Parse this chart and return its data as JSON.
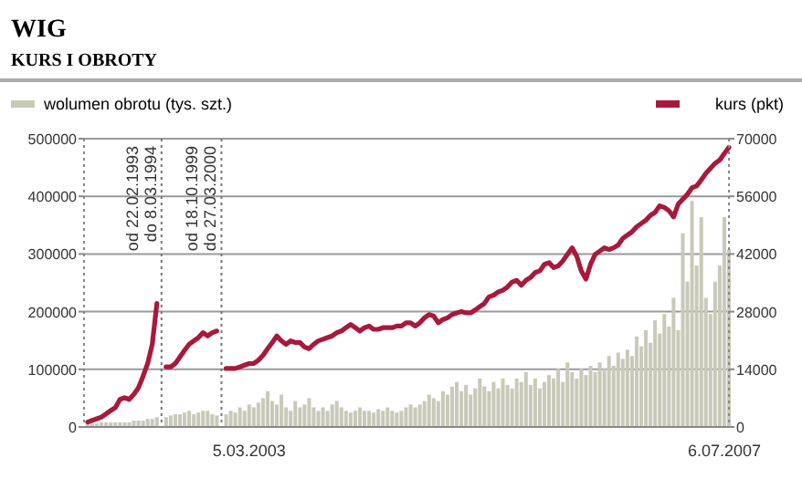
{
  "chart_data": {
    "type": "bar",
    "title": "WIG",
    "subtitle": "KURS I OBROTY",
    "categories": [
      null,
      null,
      null,
      null,
      null,
      null,
      null,
      null,
      null,
      null,
      null,
      null,
      null,
      null,
      null,
      null,
      null,
      null,
      null,
      null,
      null,
      null,
      null,
      null,
      null,
      null,
      null,
      null,
      null,
      null,
      null,
      null,
      null,
      null,
      null,
      "5.03.2003",
      null,
      null,
      null,
      null,
      null,
      null,
      null,
      null,
      null,
      null,
      null,
      null,
      null,
      null,
      null,
      null,
      null,
      null,
      null,
      null,
      null,
      null,
      null,
      null,
      null,
      null,
      null,
      null,
      null,
      null,
      null,
      null,
      null,
      null,
      null,
      null,
      null,
      null,
      null,
      null,
      null,
      null,
      null,
      null,
      null,
      null,
      null,
      null,
      null,
      null,
      null,
      null,
      null,
      null,
      null,
      null,
      null,
      null,
      null,
      null,
      null,
      null,
      null,
      null,
      null,
      null,
      null,
      null,
      null,
      null,
      null,
      null,
      null,
      null,
      null,
      null,
      null,
      null,
      null,
      null,
      null,
      null,
      null,
      null,
      null,
      null,
      null,
      null,
      null,
      null,
      null,
      null,
      null,
      null,
      null,
      null,
      null,
      null,
      null,
      null,
      null,
      null,
      "6.07.2007",
      null
    ],
    "series": [
      {
        "name": "wolumen obrotu (tys. szt.)",
        "axis": "y",
        "color": "#c9c9b9",
        "values": [
          6000,
          6000,
          6000,
          8000,
          8000,
          8000,
          8000,
          8000,
          8000,
          8000,
          11000,
          11000,
          11000,
          14000,
          14000,
          17000,
          null,
          17000,
          20000,
          22000,
          22000,
          25000,
          28000,
          22000,
          25000,
          28000,
          28000,
          22000,
          20000,
          null,
          22000,
          28000,
          25000,
          34000,
          28000,
          39000,
          34000,
          42000,
          50000,
          62000,
          45000,
          39000,
          56000,
          34000,
          28000,
          45000,
          34000,
          39000,
          50000,
          34000,
          28000,
          34000,
          28000,
          39000,
          45000,
          34000,
          28000,
          25000,
          28000,
          34000,
          28000,
          28000,
          25000,
          31000,
          28000,
          34000,
          28000,
          25000,
          28000,
          34000,
          39000,
          34000,
          39000,
          45000,
          56000,
          50000,
          45000,
          62000,
          56000,
          70000,
          78000,
          62000,
          73000,
          56000,
          67000,
          84000,
          70000,
          62000,
          78000,
          67000,
          84000,
          73000,
          67000,
          84000,
          78000,
          95000,
          73000,
          84000,
          67000,
          78000,
          90000,
          84000,
          101000,
          78000,
          112000,
          95000,
          84000,
          101000,
          90000,
          106000,
          95000,
          112000,
          101000,
          123000,
          106000,
          129000,
          118000,
          134000,
          123000,
          157000,
          140000,
          168000,
          146000,
          185000,
          162000,
          196000,
          174000,
          224000,
          168000,
          336000,
          252000,
          392000,
          280000,
          364000,
          224000,
          196000,
          252000,
          280000,
          364000,
          308000
        ]
      },
      {
        "name": "kurs (pkt)",
        "type": "line",
        "axis": "y2",
        "color": "#a8193c",
        "values": [
          1200,
          1600,
          2000,
          2400,
          3200,
          4000,
          4700,
          6700,
          7100,
          6700,
          7900,
          9500,
          12300,
          15400,
          20100,
          30000,
          null,
          14600,
          14600,
          15400,
          17000,
          18600,
          20100,
          20900,
          21700,
          22900,
          22100,
          22900,
          23300,
          null,
          14200,
          14200,
          14200,
          14600,
          15000,
          15400,
          15400,
          16200,
          17400,
          19000,
          20500,
          22100,
          20900,
          20100,
          20900,
          20500,
          20500,
          19400,
          19000,
          20100,
          20900,
          21300,
          21700,
          22100,
          22900,
          23300,
          24100,
          24900,
          24100,
          23300,
          24100,
          24500,
          23700,
          23700,
          24100,
          24100,
          24100,
          24500,
          24500,
          25300,
          25300,
          24500,
          25300,
          26500,
          27300,
          26900,
          25300,
          26100,
          26500,
          27300,
          27700,
          28000,
          27700,
          27700,
          28400,
          29200,
          30000,
          31600,
          32000,
          32800,
          33200,
          34000,
          35200,
          35600,
          34400,
          35600,
          36300,
          37500,
          37900,
          39500,
          39900,
          38700,
          39100,
          40300,
          41900,
          43500,
          41500,
          37900,
          35900,
          39500,
          41900,
          42700,
          43500,
          43100,
          43500,
          44200,
          45800,
          46600,
          47400,
          48600,
          49400,
          50200,
          51400,
          52100,
          53700,
          53300,
          52500,
          51000,
          54100,
          55300,
          56500,
          58100,
          58500,
          60000,
          61600,
          62800,
          64000,
          64800,
          66400,
          67900
        ]
      }
    ],
    "ylim": [
      0,
      500000
    ],
    "yticks": [
      0,
      100000,
      200000,
      300000,
      400000,
      500000
    ],
    "y2lim": [
      0,
      70000
    ],
    "y2ticks": [
      0,
      14000,
      28000,
      42000,
      56000,
      70000
    ],
    "grid": "y",
    "legend": "top",
    "annotations": [
      "od 22.02.1993\ndo 8.03.1994",
      "od 18.10.1999\ndo 27.03.2000"
    ]
  }
}
